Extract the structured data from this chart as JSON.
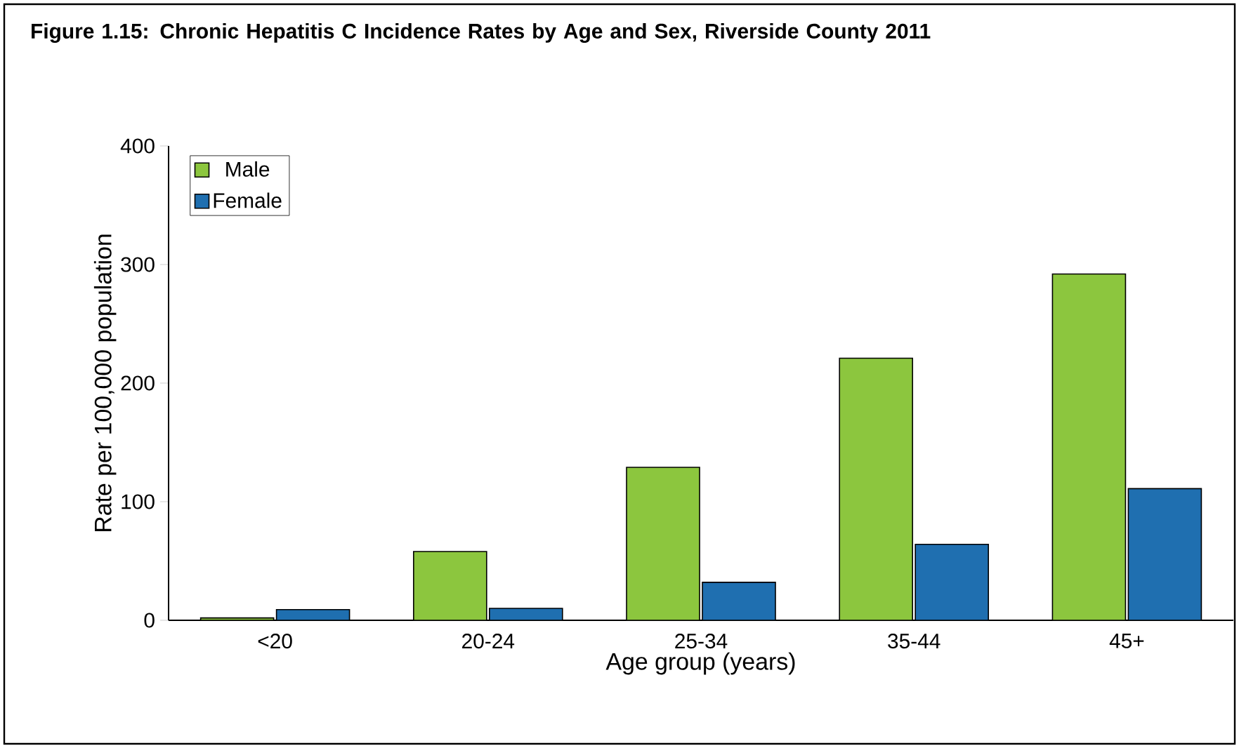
{
  "chart_data": {
    "type": "bar",
    "title": "Figure 1.15: Chronic Hepatitis C Incidence Rates by Age and Sex, Riverside County 2011",
    "xlabel": "Age group (years)",
    "ylabel": "Rate per 100,000 population",
    "categories": [
      "<20",
      "20-24",
      "25-34",
      "35-44",
      "45+"
    ],
    "series": [
      {
        "name": "Male",
        "color": "#8cc63e",
        "values": [
          2,
          58,
          129,
          221,
          292
        ]
      },
      {
        "name": "Female",
        "color": "#1f6fb0",
        "values": [
          9,
          10,
          32,
          64,
          111
        ]
      }
    ],
    "ylim": [
      0,
      400
    ],
    "yticks": [
      0,
      100,
      200,
      300,
      400
    ],
    "legend": "top left"
  }
}
